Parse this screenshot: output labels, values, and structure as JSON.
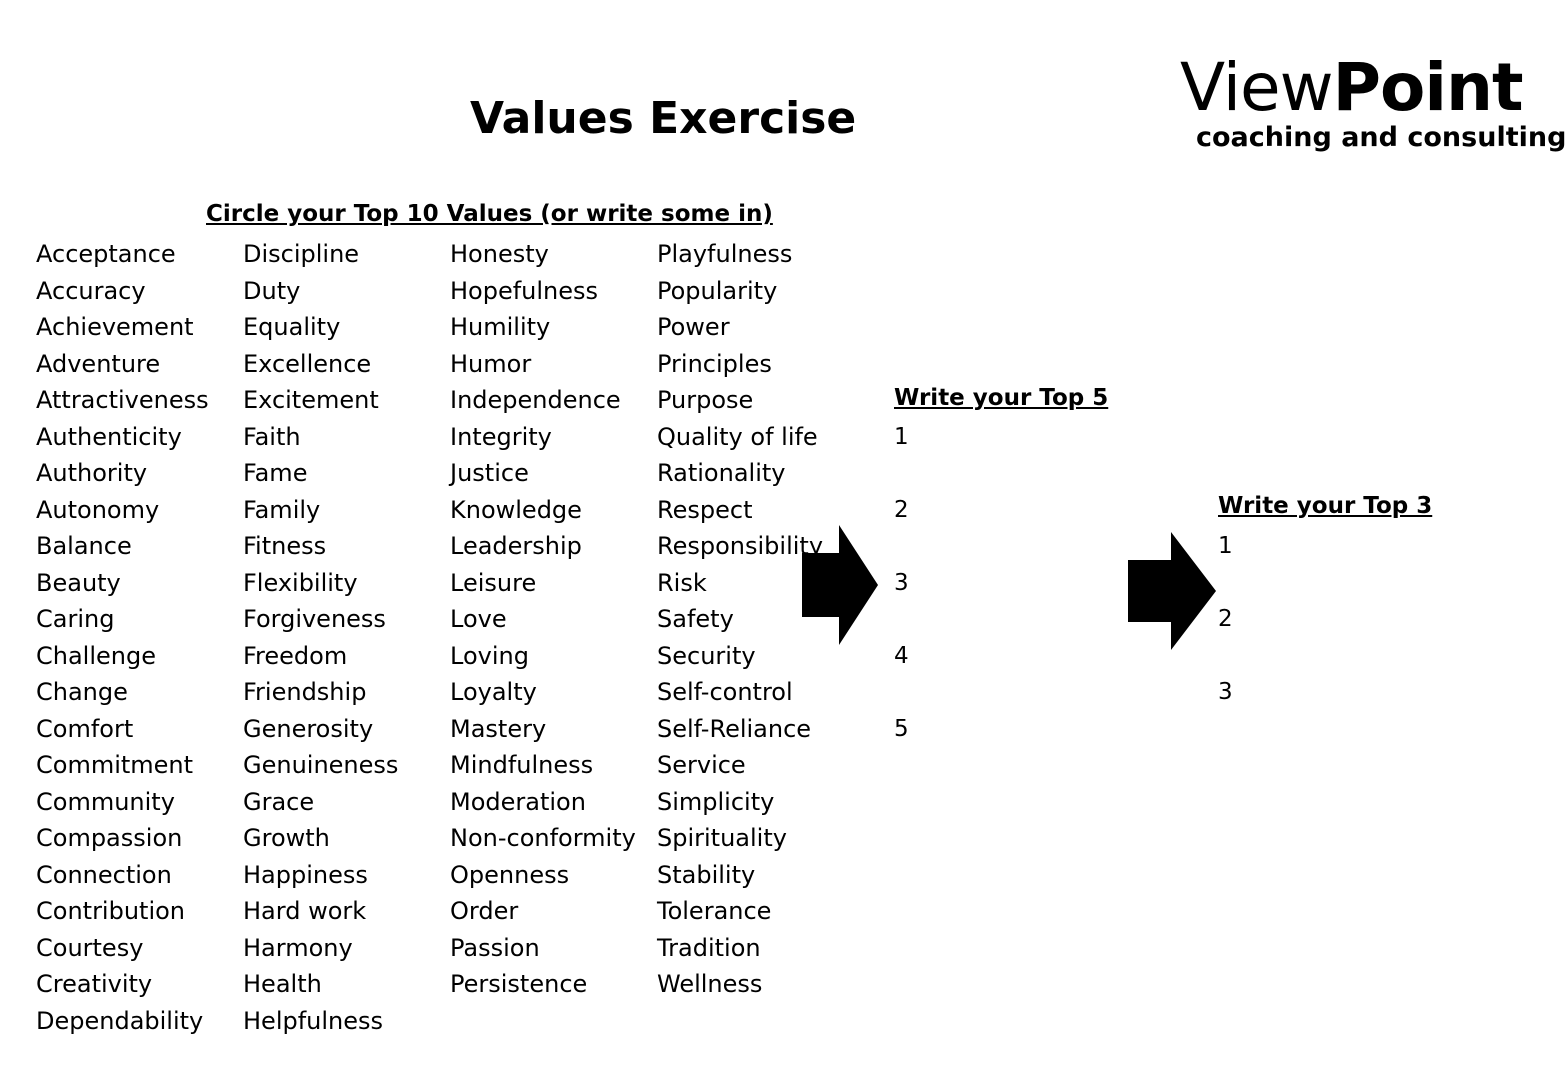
{
  "title": "Values Exercise",
  "logo": {
    "word_light": "View",
    "word_bold": "Point",
    "tagline": "coaching and consulting"
  },
  "values_heading": "Circle your Top 10 Values (or write some in)",
  "columns": [
    [
      "Acceptance",
      "Accuracy",
      "Achievement",
      "Adventure",
      "Attractiveness",
      "Authenticity",
      "Authority",
      "Autonomy",
      "Balance",
      "Beauty",
      "Caring",
      "Challenge",
      "Change",
      "Comfort",
      "Commitment",
      "Community",
      "Compassion",
      "Connection",
      "Contribution",
      "Courtesy",
      "Creativity",
      "Dependability"
    ],
    [
      "Discipline",
      "Duty",
      "Equality",
      "Excellence",
      "Excitement",
      "Faith",
      "Fame",
      "Family",
      "Fitness",
      "Flexibility",
      "Forgiveness",
      "Freedom",
      "Friendship",
      "Generosity",
      "Genuineness",
      "Grace",
      "Growth",
      "Happiness",
      "Hard work",
      "Harmony",
      "Health",
      "Helpfulness"
    ],
    [
      "Honesty",
      "Hopefulness",
      "Humility",
      "Humor",
      "Independence",
      "Integrity",
      "Justice",
      "Knowledge",
      "Leadership",
      "Leisure",
      "Love",
      "Loving",
      "Loyalty",
      "Mastery",
      "Mindfulness",
      "Moderation",
      "Non-conformity",
      "Openness",
      "Order",
      "Passion",
      "Persistence"
    ],
    [
      "Playfulness",
      "Popularity",
      "Power",
      "Principles",
      "Purpose",
      "Quality of life",
      "Rationality",
      "Respect",
      "Responsibility",
      "Risk",
      "Safety",
      "Security",
      "Self-control",
      "Self-Reliance",
      "Service",
      "Simplicity",
      "Spirituality",
      "Stability",
      "Tolerance",
      "Tradition",
      "Wellness"
    ]
  ],
  "top5": {
    "heading": "Write your Top 5",
    "numbers": [
      "1",
      "2",
      "3",
      "4",
      "5"
    ]
  },
  "top3": {
    "heading": "Write your Top 3",
    "numbers": [
      "1",
      "2",
      "3"
    ]
  }
}
